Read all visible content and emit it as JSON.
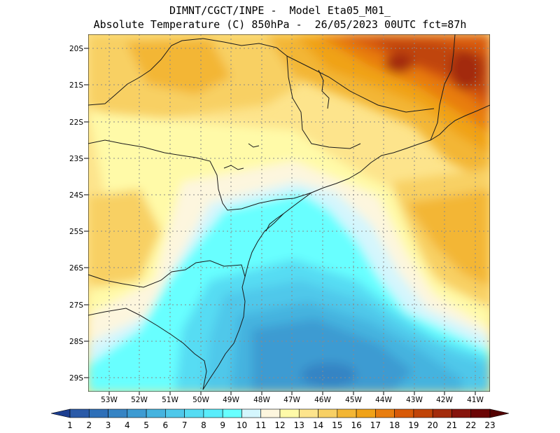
{
  "header": {
    "line1": "DIMNT/CGCT/INPE -  Model Eta05_M01_",
    "line2": "Absolute Temperature (C) 850hPa -  26/05/2023 00UTC fct=87h"
  },
  "map": {
    "lat_labels": [
      "20S",
      "21S",
      "22S",
      "23S",
      "24S",
      "25S",
      "26S",
      "27S",
      "28S",
      "29S"
    ],
    "lon_labels": [
      "53W",
      "52W",
      "51W",
      "50W",
      "49W",
      "48W",
      "47W",
      "46W",
      "45W",
      "44W",
      "43W",
      "42W",
      "41W"
    ],
    "grid": "dotted"
  },
  "colorbar": {
    "labels": [
      "1",
      "2",
      "3",
      "4",
      "5",
      "6",
      "7",
      "8",
      "9",
      "10",
      "11",
      "12",
      "13",
      "14",
      "15",
      "16",
      "17",
      "18",
      "19",
      "20",
      "21",
      "22",
      "23"
    ],
    "colors": [
      "#1c3d8f",
      "#2a5aa8",
      "#2e6fb8",
      "#3684c4",
      "#3d9bd2",
      "#45b3df",
      "#4fc8ea",
      "#56dcf3",
      "#5aedfb",
      "#68ffff",
      "#d4f6fd",
      "#fdf6de",
      "#fffaa8",
      "#fde48c",
      "#f8d064",
      "#f3b634",
      "#f0a218",
      "#e87d0f",
      "#d85a08",
      "#c04408",
      "#a32c0c",
      "#86140c",
      "#6b0505",
      "#520000"
    ]
  }
}
